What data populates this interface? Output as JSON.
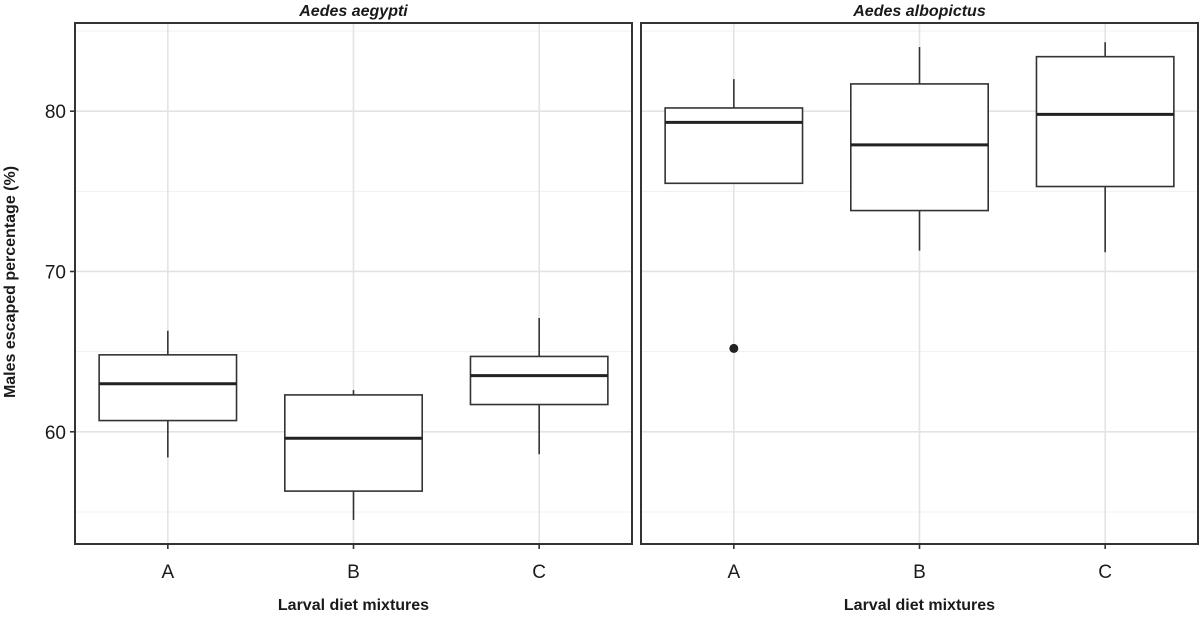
{
  "chart_data": {
    "type": "box",
    "ylabel": "Males escaped percentage (%)",
    "ylim": [
      53,
      85.5
    ],
    "yticks": [
      60,
      70,
      80
    ],
    "grid": true,
    "panels": [
      {
        "title": "Aedes aegypti",
        "xlabel": "Larval diet mixtures",
        "categories": [
          "A",
          "B",
          "C"
        ],
        "boxes": [
          {
            "category": "A",
            "whisker_low": 58.4,
            "q1": 60.7,
            "median": 63.0,
            "q3": 64.8,
            "whisker_high": 66.3,
            "outliers": []
          },
          {
            "category": "B",
            "whisker_low": 54.5,
            "q1": 56.3,
            "median": 59.6,
            "q3": 62.3,
            "whisker_high": 62.6,
            "outliers": []
          },
          {
            "category": "C",
            "whisker_low": 58.6,
            "q1": 61.7,
            "median": 63.5,
            "q3": 64.7,
            "whisker_high": 67.1,
            "outliers": []
          }
        ]
      },
      {
        "title": "Aedes albopictus",
        "xlabel": "Larval diet mixtures",
        "categories": [
          "A",
          "B",
          "C"
        ],
        "boxes": [
          {
            "category": "A",
            "whisker_low": 75.5,
            "q1": 75.5,
            "median": 79.3,
            "q3": 80.2,
            "whisker_high": 82.0,
            "outliers": [
              65.2
            ]
          },
          {
            "category": "B",
            "whisker_low": 71.3,
            "q1": 73.8,
            "median": 77.9,
            "q3": 81.7,
            "whisker_high": 84.0,
            "outliers": []
          },
          {
            "category": "C",
            "whisker_low": 71.2,
            "q1": 75.3,
            "median": 79.8,
            "q3": 83.4,
            "whisker_high": 84.3,
            "outliers": []
          }
        ]
      }
    ]
  }
}
